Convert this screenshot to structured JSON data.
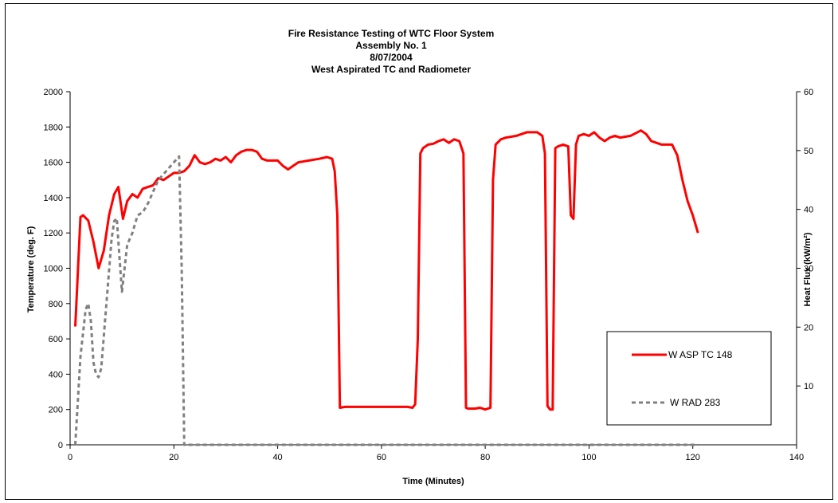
{
  "chart_data": {
    "type": "line",
    "title_lines": [
      "Fire Resistance Testing of WTC Floor System",
      "Assembly No. 1",
      "8/07/2004",
      "West Aspirated TC and Radiometer"
    ],
    "xlabel": "Time (Minutes)",
    "ylabel_left": "Temperature (deg. F)",
    "ylabel_right": "Heat Flux (kW/m²)",
    "xlim": [
      0,
      140
    ],
    "ylim_left": [
      0,
      2000
    ],
    "ylim_right": [
      0,
      60
    ],
    "xticks": [
      0,
      20,
      40,
      60,
      80,
      100,
      120,
      140
    ],
    "yticks_left": [
      0,
      200,
      400,
      600,
      800,
      1000,
      1200,
      1400,
      1600,
      1800,
      2000
    ],
    "yticks_right": [
      10,
      20,
      30,
      40,
      50,
      60
    ],
    "grid": false,
    "legend_position": "inside lower-right",
    "series": [
      {
        "name": "W ASP TC  148",
        "axis": "left",
        "color": "#ff0000",
        "style": "solid",
        "x": [
          1,
          2,
          2.5,
          3.5,
          4.5,
          5.5,
          6.5,
          7.5,
          8.5,
          9.3,
          10.2,
          11,
          12,
          13,
          14,
          15,
          16,
          17,
          18,
          19,
          20,
          21,
          22,
          23,
          24,
          25,
          26,
          27,
          28,
          29,
          30,
          31,
          32,
          33,
          34,
          35,
          36,
          37,
          38,
          40,
          41,
          42,
          43,
          44,
          46,
          48,
          49.5,
          50.5,
          51,
          51.5,
          52,
          53,
          55,
          60,
          65,
          66,
          66.5,
          67,
          67.5,
          68,
          69,
          70,
          71,
          72,
          73,
          74,
          75,
          75.8,
          76.3,
          76.7,
          78,
          79,
          80,
          81,
          81.5,
          82,
          83,
          84,
          86,
          88,
          90,
          91,
          91.5,
          92,
          92.5,
          93,
          93.5,
          94,
          95,
          96,
          96.5,
          97,
          97.5,
          98,
          99,
          100,
          101,
          102,
          103,
          104,
          105,
          106,
          108,
          110,
          111,
          112,
          113,
          114,
          115,
          116,
          117,
          118,
          119,
          120,
          121
        ],
        "values": [
          670,
          1290,
          1300,
          1270,
          1150,
          1000,
          1100,
          1300,
          1420,
          1460,
          1280,
          1380,
          1420,
          1400,
          1450,
          1460,
          1470,
          1510,
          1500,
          1520,
          1540,
          1540,
          1550,
          1580,
          1640,
          1600,
          1590,
          1600,
          1620,
          1610,
          1630,
          1600,
          1640,
          1660,
          1670,
          1670,
          1660,
          1620,
          1610,
          1610,
          1580,
          1560,
          1580,
          1600,
          1610,
          1620,
          1630,
          1620,
          1550,
          1300,
          210,
          215,
          215,
          215,
          215,
          210,
          230,
          600,
          1650,
          1680,
          1700,
          1705,
          1720,
          1730,
          1710,
          1730,
          1720,
          1650,
          210,
          205,
          205,
          210,
          200,
          210,
          1500,
          1700,
          1730,
          1740,
          1750,
          1770,
          1770,
          1750,
          1650,
          220,
          200,
          200,
          1680,
          1690,
          1700,
          1690,
          1300,
          1280,
          1700,
          1750,
          1760,
          1750,
          1770,
          1740,
          1720,
          1740,
          1750,
          1740,
          1750,
          1780,
          1760,
          1720,
          1710,
          1700,
          1700,
          1700,
          1640,
          1500,
          1380,
          1300,
          1200
        ]
      },
      {
        "name": "W RAD 283",
        "axis": "right",
        "color": "#808080",
        "style": "dashed",
        "x": [
          1,
          2,
          3,
          3.5,
          4,
          4.5,
          5,
          5.5,
          6,
          7,
          8,
          8.5,
          9,
          9.5,
          10,
          10.5,
          11,
          12,
          13,
          14,
          15,
          16,
          17,
          18,
          19,
          20,
          21,
          21.5,
          22,
          22.5,
          121
        ],
        "values": [
          0,
          15,
          23,
          24,
          21,
          14,
          12,
          11.5,
          13,
          24,
          35,
          38,
          38.5,
          32,
          26,
          30,
          34,
          36,
          39,
          39.5,
          41,
          43,
          45,
          46,
          47,
          48,
          49,
          30,
          0,
          0,
          0
        ]
      }
    ]
  }
}
